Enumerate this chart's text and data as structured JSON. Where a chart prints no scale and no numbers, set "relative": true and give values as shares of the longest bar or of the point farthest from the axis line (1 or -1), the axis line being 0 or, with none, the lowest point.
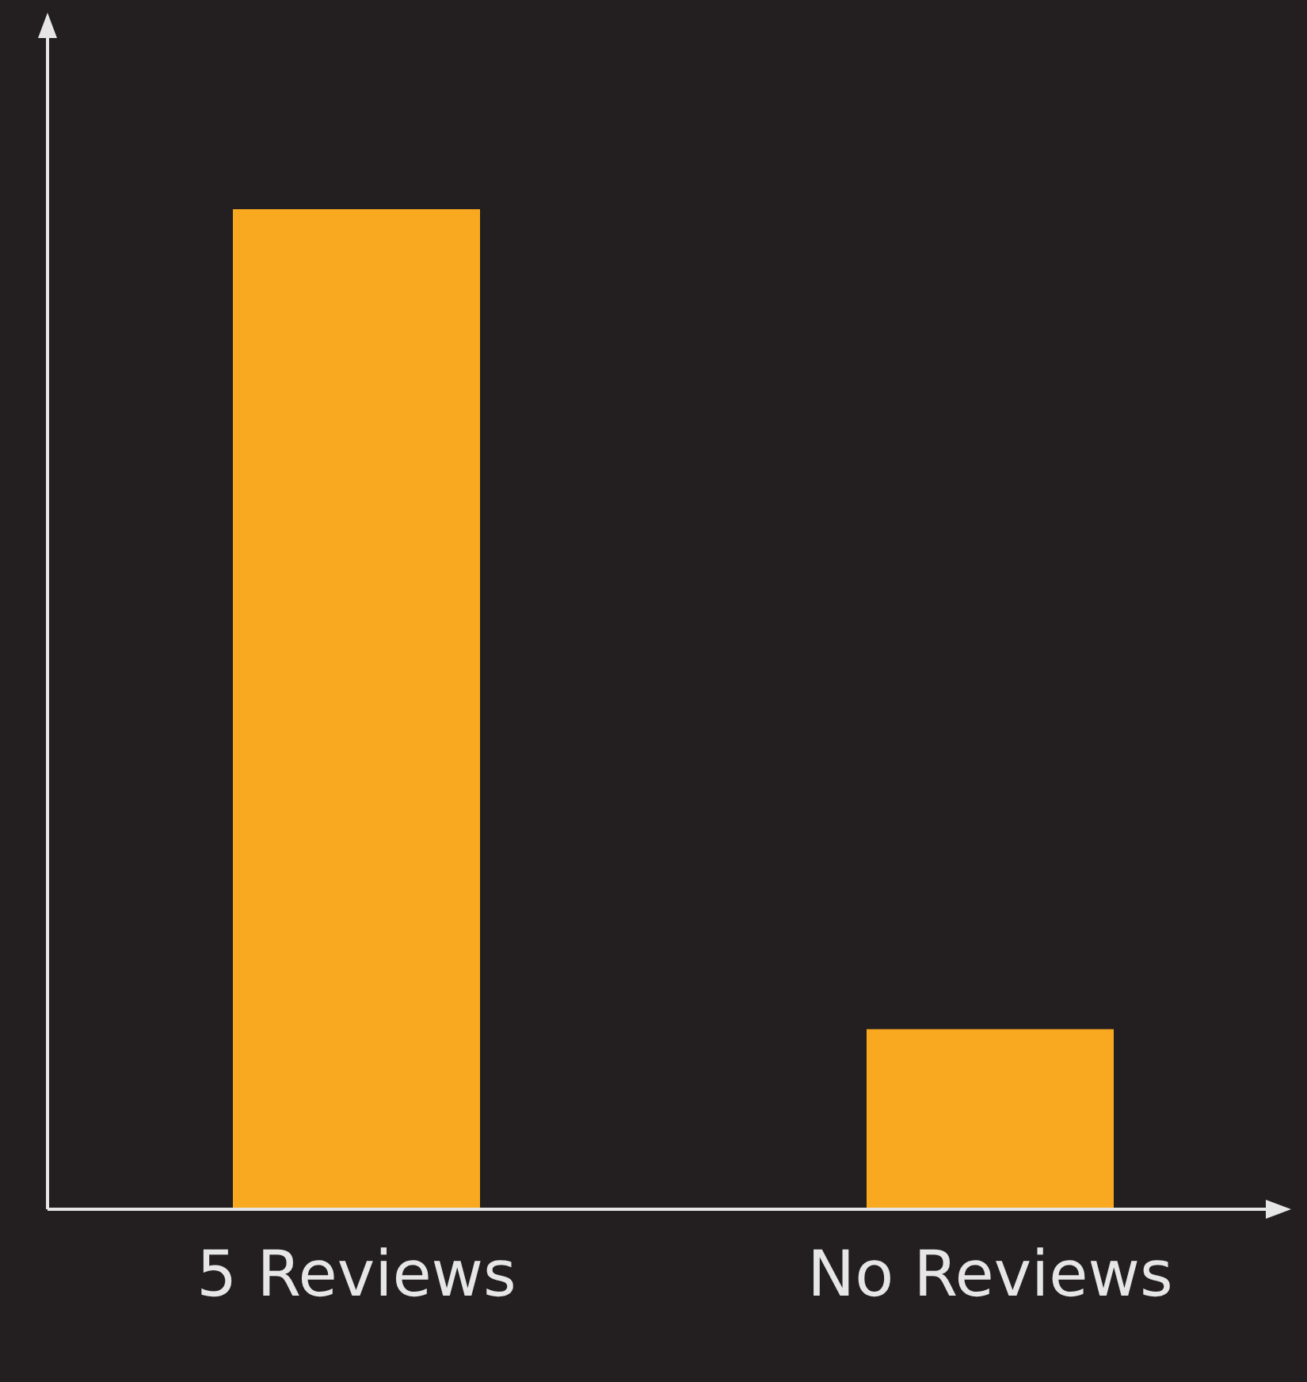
{
  "chart_data": {
    "type": "bar",
    "categories": [
      "5 Reviews",
      "No Reviews"
    ],
    "values": [
      1,
      0.18
    ],
    "color": "#f9a91f",
    "relative": true,
    "legend": false
  }
}
